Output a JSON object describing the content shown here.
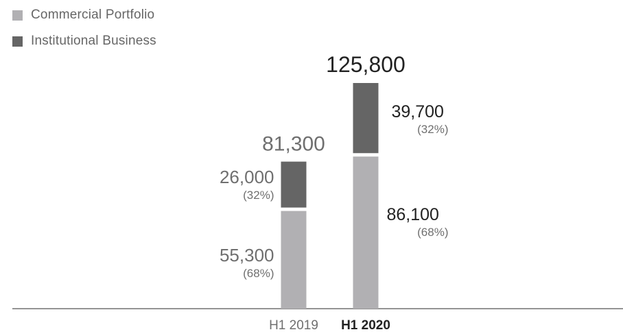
{
  "legend": {
    "commercial": "Commercial Portfolio",
    "institutional": "Institutional Business"
  },
  "colors": {
    "commercial": "#b1b0b3",
    "institutional": "#656565",
    "axis": "#555555",
    "text_light": "#6f6f6f",
    "text_dark": "#222222"
  },
  "chart_data": {
    "type": "bar",
    "stacked": true,
    "categories": [
      "H1 2019",
      "H1 2020"
    ],
    "series": [
      {
        "name": "Commercial Portfolio",
        "values": [
          55300,
          86100
        ],
        "value_labels": [
          "55,300",
          "86,100"
        ],
        "share_labels": [
          "(68%)",
          "(68%)"
        ]
      },
      {
        "name": "Institutional Business",
        "values": [
          26000,
          39700
        ],
        "value_labels": [
          "26,000",
          "39,700"
        ],
        "share_labels": [
          "(32%)",
          "(32%)"
        ]
      }
    ],
    "totals": [
      81300,
      125800
    ],
    "total_labels": [
      "81,300",
      "125,800"
    ],
    "highlighted_category": "H1 2020",
    "grid": false,
    "legend_position": "top-left"
  }
}
